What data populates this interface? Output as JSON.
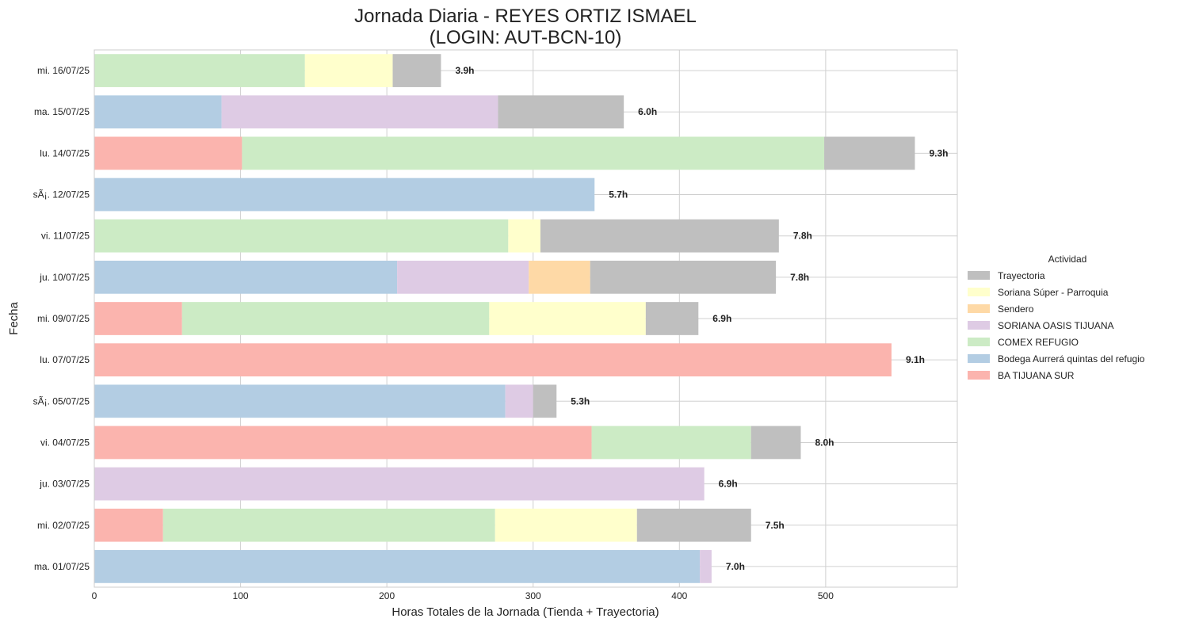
{
  "chart_data": {
    "type": "bar",
    "orientation": "horizontal",
    "stacked": true,
    "title_line1": "Jornada Diaria - REYES ORTIZ ISMAEL",
    "title_line2": "(LOGIN: AUT-BCN-10)",
    "xlabel": "Horas Totales de la Jornada (Tienda + Trayectoria)",
    "ylabel": "Fecha",
    "xlim": [
      0,
      590
    ],
    "xticks": [
      0,
      100,
      200,
      300,
      400,
      500
    ],
    "grid": true,
    "legend": {
      "title": "Actividad",
      "placement": "right",
      "entries": [
        "Trayectoria",
        "Soriana Súper - Parroquia",
        "Sendero",
        "SORIANA OASIS TIJUANA",
        "COMEX REFUGIO",
        "Bodega Aurrerá quintas del refugio",
        "BA TIJUANA SUR"
      ]
    },
    "colors": {
      "Trayectoria": "#bfbfbf",
      "Soriana Súper - Parroquia": "#ffffcc",
      "Sendero": "#fed9a6",
      "SORIANA OASIS TIJUANA": "#decbe4",
      "COMEX REFUGIO": "#ccebc5",
      "Bodega Aurrerá quintas del refugio": "#b3cde3",
      "BA TIJUANA SUR": "#fbb4ae"
    },
    "categories": [
      "mi. 16/07/25",
      "ma. 15/07/25",
      "lu. 14/07/25",
      "sÃ¡. 12/07/25",
      "vi. 11/07/25",
      "ju. 10/07/25",
      "mi. 09/07/25",
      "lu. 07/07/25",
      "sÃ¡. 05/07/25",
      "vi. 04/07/25",
      "ju. 03/07/25",
      "mi. 02/07/25",
      "ma. 01/07/25"
    ],
    "rows": [
      {
        "segments": [
          [
            "COMEX REFUGIO",
            144
          ],
          [
            "Soriana Súper - Parroquia",
            60
          ],
          [
            "Trayectoria",
            33
          ]
        ],
        "label": "3.9h"
      },
      {
        "segments": [
          [
            "Bodega Aurrerá quintas del refugio",
            87
          ],
          [
            "SORIANA OASIS TIJUANA",
            189
          ],
          [
            "Trayectoria",
            86
          ]
        ],
        "label": "6.0h"
      },
      {
        "segments": [
          [
            "BA TIJUANA SUR",
            101
          ],
          [
            "COMEX REFUGIO",
            398
          ],
          [
            "Trayectoria",
            62
          ]
        ],
        "label": "9.3h"
      },
      {
        "segments": [
          [
            "Bodega Aurrerá quintas del refugio",
            342
          ]
        ],
        "label": "5.7h"
      },
      {
        "segments": [
          [
            "COMEX REFUGIO",
            283
          ],
          [
            "Soriana Súper - Parroquia",
            22
          ],
          [
            "Trayectoria",
            163
          ]
        ],
        "label": "7.8h"
      },
      {
        "segments": [
          [
            "Bodega Aurrerá quintas del refugio",
            207
          ],
          [
            "SORIANA OASIS TIJUANA",
            90
          ],
          [
            "Sendero",
            42
          ],
          [
            "Trayectoria",
            127
          ]
        ],
        "label": "7.8h"
      },
      {
        "segments": [
          [
            "BA TIJUANA SUR",
            60
          ],
          [
            "COMEX REFUGIO",
            210
          ],
          [
            "Soriana Súper - Parroquia",
            107
          ],
          [
            "Trayectoria",
            36
          ]
        ],
        "label": "6.9h"
      },
      {
        "segments": [
          [
            "BA TIJUANA SUR",
            545
          ]
        ],
        "label": "9.1h"
      },
      {
        "segments": [
          [
            "Bodega Aurrerá quintas del refugio",
            281
          ],
          [
            "SORIANA OASIS TIJUANA",
            19
          ],
          [
            "Trayectoria",
            16
          ]
        ],
        "label": "5.3h"
      },
      {
        "segments": [
          [
            "BA TIJUANA SUR",
            340
          ],
          [
            "COMEX REFUGIO",
            109
          ],
          [
            "Trayectoria",
            34
          ]
        ],
        "label": "8.0h"
      },
      {
        "segments": [
          [
            "SORIANA OASIS TIJUANA",
            417
          ]
        ],
        "label": "6.9h"
      },
      {
        "segments": [
          [
            "BA TIJUANA SUR",
            47
          ],
          [
            "COMEX REFUGIO",
            227
          ],
          [
            "Soriana Súper - Parroquia",
            97
          ],
          [
            "Trayectoria",
            78
          ]
        ],
        "label": "7.5h"
      },
      {
        "segments": [
          [
            "Bodega Aurrerá quintas del refugio",
            414
          ],
          [
            "SORIANA OASIS TIJUANA",
            8
          ]
        ],
        "label": "7.0h"
      }
    ]
  }
}
